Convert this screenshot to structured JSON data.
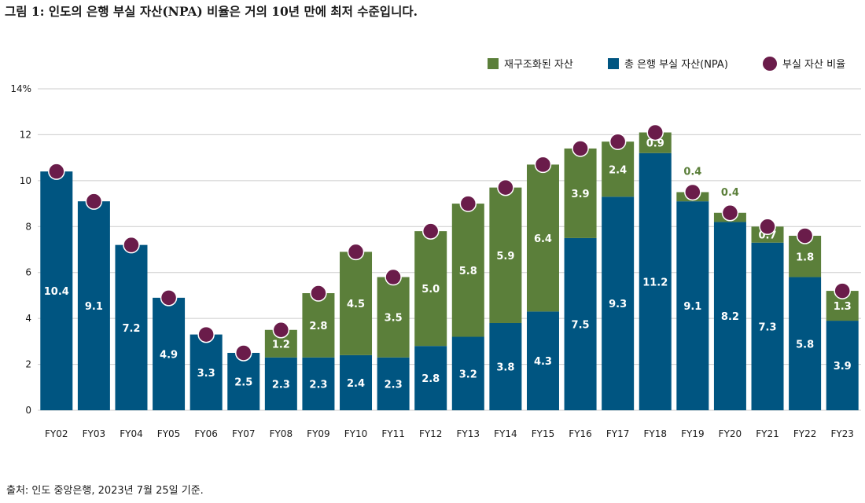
{
  "title": "그림 1: 인도의 은행 부실 자산(NPA) 비율은 거의 10년 만에 최저 수준입니다.",
  "source": "출처: 인도 중앙은행, 2023년 7월 25일 기준.",
  "colors": {
    "restructured": "#5b7f3a",
    "npa": "#005581",
    "ratio": "#6a1c4a",
    "grid": "#cccccc"
  },
  "chart_data": {
    "type": "bar",
    "stacked": true,
    "categories": [
      "FY02",
      "FY03",
      "FY04",
      "FY05",
      "FY06",
      "FY07",
      "FY08",
      "FY09",
      "FY10",
      "FY11",
      "FY12",
      "FY13",
      "FY14",
      "FY15",
      "FY16",
      "FY17",
      "FY18",
      "FY19",
      "FY20",
      "FY21",
      "FY22",
      "FY23"
    ],
    "series": [
      {
        "name": "총 은행 부실 자산(NPA)",
        "values": [
          10.4,
          9.1,
          7.2,
          4.9,
          3.3,
          2.5,
          2.3,
          2.3,
          2.4,
          2.3,
          2.8,
          3.2,
          3.8,
          4.3,
          7.5,
          9.3,
          11.2,
          9.1,
          8.2,
          7.3,
          5.8,
          3.9
        ]
      },
      {
        "name": "재구조화된 자산",
        "values": [
          0,
          0,
          0,
          0,
          0,
          0,
          1.2,
          2.8,
          4.5,
          3.5,
          5.0,
          5.8,
          5.9,
          6.4,
          3.9,
          2.4,
          0.9,
          0.4,
          0.4,
          0.7,
          1.8,
          1.3
        ]
      },
      {
        "name": "부실 자산 비율",
        "type": "scatter",
        "values": [
          10.4,
          9.1,
          7.2,
          4.9,
          3.3,
          2.5,
          3.5,
          5.1,
          6.9,
          5.8,
          7.8,
          9.0,
          9.7,
          10.7,
          11.4,
          11.7,
          12.1,
          9.5,
          8.6,
          8.0,
          7.6,
          5.2
        ]
      }
    ],
    "y_ticks": [
      "0",
      "2",
      "4",
      "6",
      "8",
      "10",
      "12",
      "14%"
    ],
    "ylim": [
      0,
      14
    ],
    "grid": true,
    "legend": "top-right"
  }
}
